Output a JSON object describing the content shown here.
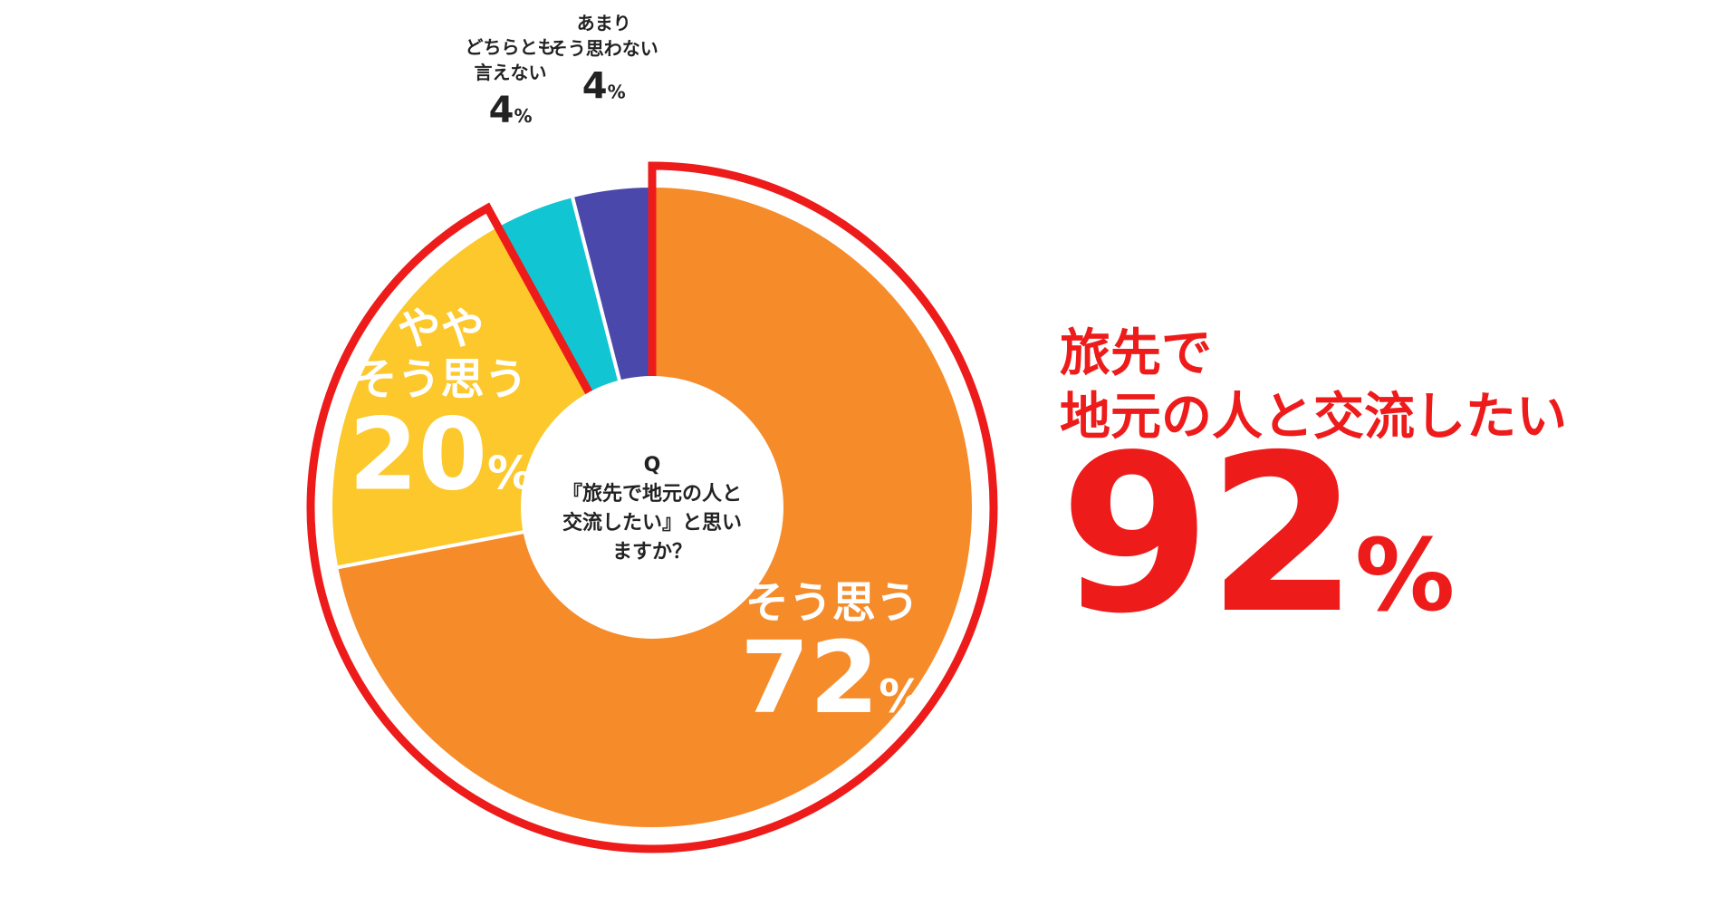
{
  "chart_data": {
    "type": "pie",
    "center_text": [
      "Q",
      "『旅先で地元の人と",
      "交流したい』と思い",
      "ますか？"
    ],
    "slices": [
      {
        "label_lines": [
          "そう思う"
        ],
        "value": 72,
        "value_text": "72",
        "unit": "%",
        "color": "#f68b2a",
        "label_placement": "inside"
      },
      {
        "label_lines": [
          "やや",
          "そう思う"
        ],
        "value": 20,
        "value_text": "20",
        "unit": "%",
        "color": "#fcc82b",
        "label_placement": "inside"
      },
      {
        "label_lines": [
          "どちらとも",
          "言えない"
        ],
        "value": 4,
        "value_text": "4",
        "unit": "%",
        "color": "#12c5d3",
        "label_placement": "outside"
      },
      {
        "label_lines": [
          "あまり",
          "そう思わない"
        ],
        "value": 4,
        "value_text": "4",
        "unit": "%",
        "color": "#4b48ac",
        "label_placement": "outside"
      }
    ],
    "highlight": {
      "slices": [
        0,
        1
      ],
      "color": "#ee1b1b"
    },
    "start": "top",
    "direction": "clockwise"
  },
  "headline": {
    "line1": "旅先で",
    "line2": "地元の人と交流したい",
    "value": "92",
    "unit": "%",
    "color": "#ee1b1b"
  }
}
